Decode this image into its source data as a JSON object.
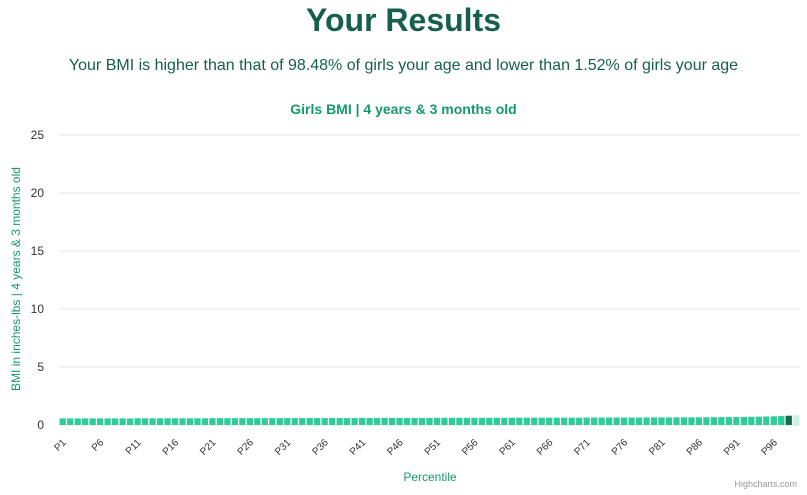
{
  "header": {
    "title": "Your Results",
    "summary": "Your BMI is higher than that of 98.48% of girls your age and lower than 1.52% of girls your age"
  },
  "credits": "Highcharts.com",
  "colors": {
    "bar": "#2ecc9a",
    "highlight": "#136b52",
    "after": "#c9f4e3",
    "grid": "#e6e6e6",
    "axis_title": "#159a6c"
  },
  "chart_data": {
    "type": "bar",
    "title": "Girls BMI | 4 years & 3 months old",
    "xlabel": "Percentile",
    "ylabel": "BMI in inches-lbs | 4 years & 3 months old",
    "ylim": [
      0,
      25
    ],
    "yticks": [
      0,
      5,
      10,
      15,
      20,
      25
    ],
    "grid": true,
    "highlight_category": "P98",
    "categories": [
      "P1",
      "P2",
      "P3",
      "P4",
      "P5",
      "P6",
      "P7",
      "P8",
      "P9",
      "P10",
      "P11",
      "P12",
      "P13",
      "P14",
      "P15",
      "P16",
      "P17",
      "P18",
      "P19",
      "P20",
      "P21",
      "P22",
      "P23",
      "P24",
      "P25",
      "P26",
      "P27",
      "P28",
      "P29",
      "P30",
      "P31",
      "P32",
      "P33",
      "P34",
      "P35",
      "P36",
      "P37",
      "P38",
      "P39",
      "P40",
      "P41",
      "P42",
      "P43",
      "P44",
      "P45",
      "P46",
      "P47",
      "P48",
      "P49",
      "P50",
      "P51",
      "P52",
      "P53",
      "P54",
      "P55",
      "P56",
      "P57",
      "P58",
      "P59",
      "P60",
      "P61",
      "P62",
      "P63",
      "P64",
      "P65",
      "P66",
      "P67",
      "P68",
      "P69",
      "P70",
      "P71",
      "P72",
      "P73",
      "P74",
      "P75",
      "P76",
      "P77",
      "P78",
      "P79",
      "P80",
      "P81",
      "P82",
      "P83",
      "P84",
      "P85",
      "P86",
      "P87",
      "P88",
      "P89",
      "P90",
      "P91",
      "P92",
      "P93",
      "P94",
      "P95",
      "P96",
      "P97",
      "P98",
      "P99"
    ],
    "tick_labels": [
      "P1",
      "P6",
      "P11",
      "P16",
      "P21",
      "P26",
      "P31",
      "P36",
      "P41",
      "P46",
      "P51",
      "P56",
      "P61",
      "P66",
      "P71",
      "P76",
      "P81",
      "P86",
      "P91",
      "P96"
    ],
    "values": [
      0.57,
      0.57,
      0.57,
      0.57,
      0.57,
      0.57,
      0.57,
      0.57,
      0.57,
      0.57,
      0.58,
      0.58,
      0.58,
      0.58,
      0.58,
      0.58,
      0.58,
      0.58,
      0.58,
      0.58,
      0.59,
      0.59,
      0.59,
      0.59,
      0.59,
      0.59,
      0.59,
      0.59,
      0.59,
      0.59,
      0.6,
      0.6,
      0.6,
      0.6,
      0.6,
      0.6,
      0.6,
      0.6,
      0.6,
      0.6,
      0.61,
      0.61,
      0.61,
      0.61,
      0.61,
      0.61,
      0.61,
      0.61,
      0.61,
      0.61,
      0.62,
      0.62,
      0.62,
      0.62,
      0.62,
      0.62,
      0.62,
      0.62,
      0.62,
      0.62,
      0.63,
      0.63,
      0.63,
      0.63,
      0.63,
      0.63,
      0.63,
      0.63,
      0.63,
      0.63,
      0.64,
      0.64,
      0.64,
      0.64,
      0.64,
      0.64,
      0.64,
      0.64,
      0.65,
      0.65,
      0.65,
      0.65,
      0.66,
      0.66,
      0.66,
      0.66,
      0.67,
      0.67,
      0.68,
      0.68,
      0.69,
      0.7,
      0.71,
      0.72,
      0.73,
      0.75,
      0.77,
      0.8,
      0.85
    ]
  }
}
